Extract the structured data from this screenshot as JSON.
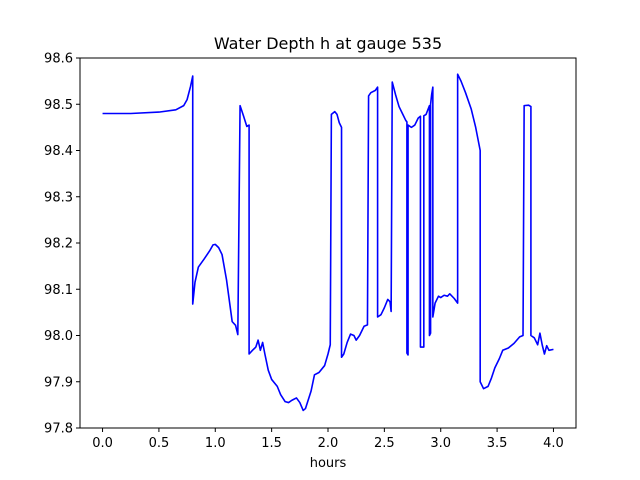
{
  "chart_data": {
    "type": "line",
    "title": "Water Depth h at gauge 535",
    "xlabel": "hours",
    "ylabel": "",
    "xlim": [
      -0.2,
      4.2
    ],
    "ylim": [
      97.8,
      98.6
    ],
    "grid": false,
    "xticks": [
      0.0,
      0.5,
      1.0,
      1.5,
      2.0,
      2.5,
      3.0,
      3.5,
      4.0
    ],
    "xtick_labels": [
      "0.0",
      "0.5",
      "1.0",
      "1.5",
      "2.0",
      "2.5",
      "3.0",
      "3.5",
      "4.0"
    ],
    "yticks": [
      97.8,
      97.9,
      98.0,
      98.1,
      98.2,
      98.3,
      98.4,
      98.5,
      98.6
    ],
    "ytick_labels": [
      "97.8",
      "97.9",
      "98.0",
      "98.1",
      "98.2",
      "98.3",
      "98.4",
      "98.5",
      "98.6"
    ],
    "series": [
      {
        "color": "#0000ff",
        "points": [
          [
            0.0,
            98.48
          ],
          [
            0.25,
            98.48
          ],
          [
            0.5,
            98.483
          ],
          [
            0.65,
            98.488
          ],
          [
            0.72,
            98.497
          ],
          [
            0.75,
            98.51
          ],
          [
            0.78,
            98.538
          ],
          [
            0.8,
            98.561
          ],
          [
            0.8,
            98.068
          ],
          [
            0.82,
            98.115
          ],
          [
            0.85,
            98.148
          ],
          [
            0.9,
            98.165
          ],
          [
            0.95,
            98.183
          ],
          [
            0.98,
            98.196
          ],
          [
            1.0,
            98.197
          ],
          [
            1.03,
            98.19
          ],
          [
            1.06,
            98.175
          ],
          [
            1.1,
            98.12
          ],
          [
            1.15,
            98.03
          ],
          [
            1.18,
            98.022
          ],
          [
            1.2,
            98.002
          ],
          [
            1.22,
            98.497
          ],
          [
            1.25,
            98.475
          ],
          [
            1.28,
            98.452
          ],
          [
            1.3,
            98.455
          ],
          [
            1.3,
            97.96
          ],
          [
            1.33,
            97.968
          ],
          [
            1.36,
            97.975
          ],
          [
            1.38,
            97.99
          ],
          [
            1.4,
            97.968
          ],
          [
            1.42,
            97.985
          ],
          [
            1.44,
            97.96
          ],
          [
            1.47,
            97.925
          ],
          [
            1.5,
            97.905
          ],
          [
            1.55,
            97.89
          ],
          [
            1.58,
            97.872
          ],
          [
            1.62,
            97.857
          ],
          [
            1.65,
            97.855
          ],
          [
            1.68,
            97.86
          ],
          [
            1.72,
            97.865
          ],
          [
            1.75,
            97.855
          ],
          [
            1.78,
            97.838
          ],
          [
            1.8,
            97.842
          ],
          [
            1.85,
            97.88
          ],
          [
            1.88,
            97.915
          ],
          [
            1.92,
            97.92
          ],
          [
            1.97,
            97.935
          ],
          [
            2.0,
            97.96
          ],
          [
            2.02,
            97.98
          ],
          [
            2.03,
            98.478
          ],
          [
            2.06,
            98.484
          ],
          [
            2.08,
            98.478
          ],
          [
            2.1,
            98.46
          ],
          [
            2.12,
            98.45
          ],
          [
            2.12,
            97.953
          ],
          [
            2.14,
            97.96
          ],
          [
            2.17,
            97.985
          ],
          [
            2.2,
            98.003
          ],
          [
            2.23,
            98.0
          ],
          [
            2.25,
            97.99
          ],
          [
            2.28,
            98.0
          ],
          [
            2.32,
            98.02
          ],
          [
            2.35,
            98.023
          ],
          [
            2.36,
            98.518
          ],
          [
            2.38,
            98.525
          ],
          [
            2.42,
            98.53
          ],
          [
            2.44,
            98.537
          ],
          [
            2.44,
            98.04
          ],
          [
            2.47,
            98.045
          ],
          [
            2.5,
            98.06
          ],
          [
            2.53,
            98.078
          ],
          [
            2.55,
            98.073
          ],
          [
            2.56,
            98.052
          ],
          [
            2.57,
            98.548
          ],
          [
            2.6,
            98.52
          ],
          [
            2.63,
            98.495
          ],
          [
            2.66,
            98.48
          ],
          [
            2.69,
            98.465
          ],
          [
            2.7,
            98.462
          ],
          [
            2.7,
            97.962
          ],
          [
            2.71,
            97.958
          ],
          [
            2.71,
            98.455
          ],
          [
            2.74,
            98.45
          ],
          [
            2.77,
            98.455
          ],
          [
            2.8,
            98.47
          ],
          [
            2.82,
            98.474
          ],
          [
            2.82,
            97.975
          ],
          [
            2.85,
            97.975
          ],
          [
            2.85,
            98.475
          ],
          [
            2.87,
            98.478
          ],
          [
            2.9,
            98.497
          ],
          [
            2.9,
            98.0
          ],
          [
            2.91,
            98.005
          ],
          [
            2.91,
            98.5
          ],
          [
            2.92,
            98.522
          ],
          [
            2.93,
            98.537
          ],
          [
            2.93,
            98.04
          ],
          [
            2.95,
            98.07
          ],
          [
            2.98,
            98.085
          ],
          [
            3.0,
            98.082
          ],
          [
            3.03,
            98.087
          ],
          [
            3.06,
            98.085
          ],
          [
            3.08,
            98.09
          ],
          [
            3.12,
            98.08
          ],
          [
            3.15,
            98.07
          ],
          [
            3.15,
            98.565
          ],
          [
            3.18,
            98.55
          ],
          [
            3.22,
            98.525
          ],
          [
            3.27,
            98.49
          ],
          [
            3.31,
            98.45
          ],
          [
            3.35,
            98.4
          ],
          [
            3.35,
            97.9
          ],
          [
            3.38,
            97.885
          ],
          [
            3.42,
            97.89
          ],
          [
            3.45,
            97.908
          ],
          [
            3.48,
            97.93
          ],
          [
            3.52,
            97.95
          ],
          [
            3.55,
            97.968
          ],
          [
            3.6,
            97.973
          ],
          [
            3.65,
            97.983
          ],
          [
            3.7,
            97.997
          ],
          [
            3.73,
            98.0
          ],
          [
            3.74,
            98.497
          ],
          [
            3.78,
            98.498
          ],
          [
            3.8,
            98.495
          ],
          [
            3.8,
            98.0
          ],
          [
            3.83,
            97.995
          ],
          [
            3.86,
            97.98
          ],
          [
            3.88,
            98.005
          ],
          [
            3.9,
            97.98
          ],
          [
            3.92,
            97.96
          ],
          [
            3.94,
            97.978
          ],
          [
            3.96,
            97.968
          ],
          [
            4.0,
            97.97
          ]
        ]
      }
    ]
  }
}
